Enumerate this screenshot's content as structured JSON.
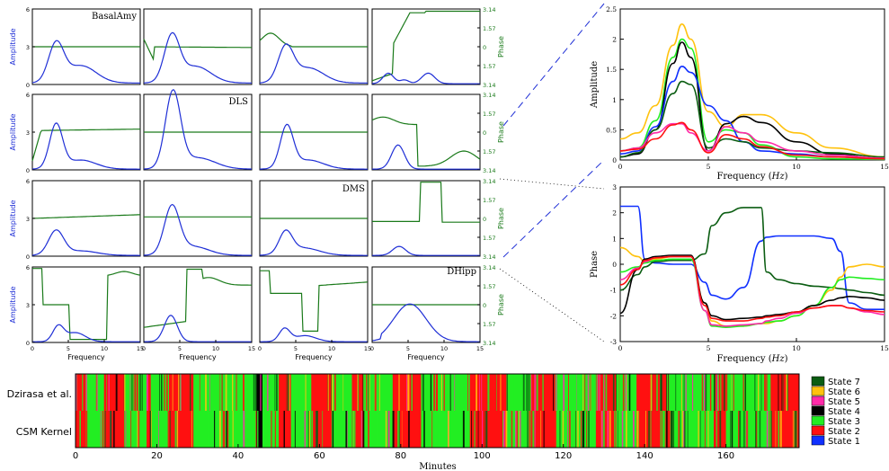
{
  "colors": {
    "amplitude": "#1f2fd6",
    "phase": "#1a7a1a",
    "state_1": "#1030ff",
    "state_2": "#ff1010",
    "state_3": "#22ee22",
    "state_4": "#000000",
    "state_5": "#ff2aa8",
    "state_6": "#ffc20e",
    "state_7": "#0b5d12"
  },
  "panel_grid": {
    "regions": [
      "BasalAmy",
      "DLS",
      "DMS",
      "DHipp"
    ],
    "amplitude_axis_label": "Amplitude",
    "phase_axis_label": "Phase",
    "frequency_axis_label": "Frequency",
    "amplitude_ticks": [
      "0",
      "3",
      "6"
    ],
    "phase_ticks": [
      "3.14",
      "1.57",
      "0",
      "1.57",
      "3.14"
    ],
    "frequency_ticks": [
      "0",
      "5",
      "10",
      "15"
    ]
  },
  "timeline": {
    "rows": [
      "Dzirasa et al.",
      "CSM Kernel"
    ],
    "xlabel": "Minutes",
    "xticks": [
      "0",
      "20",
      "40",
      "60",
      "80",
      "100",
      "120",
      "140",
      "160"
    ],
    "legend": [
      "State 7",
      "State 6",
      "State 5",
      "State 4",
      "State 3",
      "State 2",
      "State 1"
    ]
  },
  "chart_data": [
    {
      "type": "line",
      "title": "",
      "xlabel": "Frequency (Hz)",
      "ylabel": "Amplitude",
      "xlim": [
        0,
        15
      ],
      "ylim": [
        0,
        2.5
      ],
      "xticks": [
        "0",
        "5",
        "10",
        "15"
      ],
      "yticks": [
        "0",
        "0.5",
        "1",
        "1.5",
        "2",
        "2.5"
      ],
      "x": [
        0,
        1,
        2,
        3,
        3.5,
        4,
        5,
        6,
        7,
        8,
        10,
        12,
        15
      ],
      "series": [
        {
          "color_key": "state_6",
          "values": [
            0.35,
            0.45,
            0.9,
            1.9,
            2.25,
            2.0,
            0.8,
            0.55,
            0.75,
            0.75,
            0.45,
            0.2,
            0.05
          ]
        },
        {
          "color_key": "state_3",
          "values": [
            0.15,
            0.2,
            0.65,
            1.7,
            2.0,
            1.85,
            0.3,
            0.5,
            0.45,
            0.25,
            0.05,
            0.02,
            0.01
          ]
        },
        {
          "color_key": "state_4",
          "values": [
            0.05,
            0.1,
            0.5,
            1.6,
            1.95,
            1.7,
            0.15,
            0.6,
            0.72,
            0.62,
            0.3,
            0.1,
            0.02
          ]
        },
        {
          "color_key": "state_1",
          "values": [
            0.1,
            0.15,
            0.55,
            1.3,
            1.55,
            1.45,
            0.9,
            0.65,
            0.3,
            0.15,
            0.1,
            0.05,
            0.02
          ]
        },
        {
          "color_key": "state_7",
          "values": [
            0.05,
            0.12,
            0.5,
            1.1,
            1.3,
            1.25,
            0.2,
            0.35,
            0.3,
            0.2,
            0.15,
            0.12,
            0.05
          ]
        },
        {
          "color_key": "state_5",
          "values": [
            0.15,
            0.2,
            0.45,
            0.6,
            0.6,
            0.45,
            0.15,
            0.55,
            0.45,
            0.3,
            0.15,
            0.08,
            0.03
          ]
        },
        {
          "color_key": "state_2",
          "values": [
            0.15,
            0.18,
            0.35,
            0.58,
            0.62,
            0.5,
            0.12,
            0.42,
            0.35,
            0.22,
            0.08,
            0.05,
            0.02
          ]
        }
      ]
    },
    {
      "type": "line",
      "title": "",
      "xlabel": "Frequency (Hz)",
      "ylabel": "Phase",
      "xlim": [
        0,
        15
      ],
      "ylim": [
        -3,
        3
      ],
      "xticks": [
        "0",
        "5",
        "10",
        "15"
      ],
      "yticks": [
        "-3",
        "-2",
        "-1",
        "0",
        "1",
        "2",
        "3"
      ],
      "x": [
        0,
        1,
        1.4,
        2,
        3,
        4,
        4.8,
        5.2,
        6,
        7,
        8,
        8.3,
        9,
        10,
        11,
        12,
        12.5,
        13,
        14,
        15
      ],
      "series": [
        {
          "color_key": "state_1",
          "values": [
            2.25,
            2.25,
            0.2,
            0.05,
            0.0,
            0.0,
            -0.7,
            -1.2,
            -1.35,
            -0.9,
            0.9,
            1.05,
            1.1,
            1.1,
            1.1,
            1.0,
            0.5,
            -1.5,
            -1.75,
            -1.75
          ]
        },
        {
          "color_key": "state_7",
          "values": [
            -1.0,
            -0.4,
            -0.1,
            0.1,
            0.15,
            0.15,
            0.4,
            1.5,
            2.0,
            2.2,
            2.2,
            -0.3,
            -0.6,
            -0.75,
            -0.85,
            -0.9,
            -0.95,
            -1.0,
            -1.1,
            -1.2
          ]
        },
        {
          "color_key": "state_6",
          "values": [
            0.65,
            0.3,
            0.1,
            0.2,
            0.3,
            0.3,
            -1.5,
            -2.2,
            -2.4,
            -2.4,
            -2.3,
            -2.3,
            -2.2,
            -2.0,
            -1.6,
            -1.0,
            -0.5,
            -0.1,
            0.0,
            -0.1
          ]
        },
        {
          "color_key": "state_3",
          "values": [
            -0.3,
            -0.1,
            0.05,
            0.15,
            0.2,
            0.2,
            -1.8,
            -2.4,
            -2.45,
            -2.4,
            -2.3,
            -2.25,
            -2.2,
            -2.0,
            -1.6,
            -0.9,
            -0.6,
            -0.5,
            -0.55,
            -0.6
          ]
        },
        {
          "color_key": "state_4",
          "values": [
            -1.9,
            -0.2,
            0.2,
            0.3,
            0.35,
            0.35,
            -1.5,
            -2.0,
            -2.15,
            -2.1,
            -2.05,
            -2.0,
            -1.95,
            -1.85,
            -1.6,
            -1.4,
            -1.3,
            -1.25,
            -1.3,
            -1.4
          ]
        },
        {
          "color_key": "state_5",
          "values": [
            -0.6,
            -0.15,
            0.1,
            0.25,
            0.3,
            0.3,
            -1.8,
            -2.35,
            -2.4,
            -2.35,
            -2.3,
            -2.2,
            -2.1,
            -1.9,
            -1.7,
            -1.6,
            -1.6,
            -1.7,
            -1.85,
            -1.95
          ]
        },
        {
          "color_key": "state_2",
          "values": [
            -0.8,
            -0.2,
            0.15,
            0.25,
            0.3,
            0.3,
            -1.6,
            -2.1,
            -2.2,
            -2.2,
            -2.1,
            -2.05,
            -2.0,
            -1.85,
            -1.7,
            -1.6,
            -1.6,
            -1.7,
            -1.8,
            -1.85
          ]
        }
      ]
    }
  ]
}
